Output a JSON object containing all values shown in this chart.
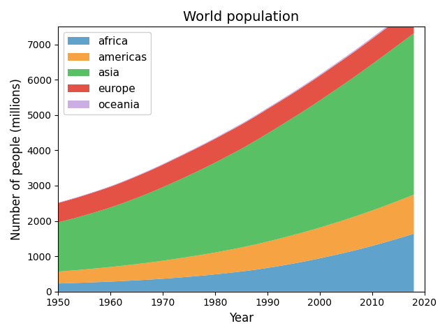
{
  "title": "World population",
  "xlabel": "Year",
  "ylabel": "Number of people (millions)",
  "years": [
    1950,
    1951,
    1952,
    1953,
    1954,
    1955,
    1956,
    1957,
    1958,
    1959,
    1960,
    1961,
    1962,
    1963,
    1964,
    1965,
    1966,
    1967,
    1968,
    1969,
    1970,
    1971,
    1972,
    1973,
    1974,
    1975,
    1976,
    1977,
    1978,
    1979,
    1980,
    1981,
    1982,
    1983,
    1984,
    1985,
    1986,
    1987,
    1988,
    1989,
    1990,
    1991,
    1992,
    1993,
    1994,
    1995,
    1996,
    1997,
    1998,
    1999,
    2000,
    2001,
    2002,
    2003,
    2004,
    2005,
    2006,
    2007,
    2008,
    2009,
    2010,
    2011,
    2012,
    2013,
    2014,
    2015,
    2016,
    2017,
    2018
  ],
  "africa": [
    228,
    232,
    237,
    242,
    247,
    252,
    258,
    263,
    269,
    275,
    281,
    288,
    295,
    302,
    310,
    318,
    326,
    335,
    344,
    353,
    363,
    374,
    385,
    396,
    408,
    420,
    432,
    445,
    458,
    472,
    487,
    502,
    518,
    534,
    550,
    568,
    586,
    605,
    625,
    647,
    670,
    693,
    717,
    742,
    768,
    795,
    822,
    850,
    879,
    909,
    940,
    972,
    1005,
    1038,
    1071,
    1106,
    1141,
    1177,
    1215,
    1253,
    1293,
    1333,
    1374,
    1416,
    1459,
    1502,
    1546,
    1591,
    1637
  ],
  "americas": [
    338,
    345,
    352,
    359,
    366,
    374,
    382,
    390,
    398,
    406,
    415,
    423,
    432,
    441,
    451,
    460,
    470,
    480,
    490,
    500,
    511,
    521,
    532,
    542,
    553,
    564,
    575,
    586,
    597,
    609,
    620,
    632,
    644,
    656,
    668,
    680,
    693,
    706,
    719,
    732,
    745,
    757,
    770,
    783,
    795,
    808,
    820,
    833,
    845,
    858,
    871,
    884,
    897,
    910,
    923,
    936,
    949,
    962,
    976,
    989,
    1002,
    1015,
    1028,
    1041,
    1054,
    1068,
    1081,
    1094,
    1107
  ],
  "asia": [
    1395,
    1420,
    1447,
    1474,
    1502,
    1531,
    1560,
    1591,
    1622,
    1654,
    1687,
    1722,
    1758,
    1796,
    1834,
    1874,
    1913,
    1953,
    1995,
    2038,
    2081,
    2126,
    2171,
    2217,
    2262,
    2308,
    2354,
    2401,
    2449,
    2497,
    2545,
    2595,
    2645,
    2694,
    2744,
    2794,
    2846,
    2899,
    2953,
    3007,
    3061,
    3114,
    3168,
    3222,
    3275,
    3329,
    3383,
    3437,
    3491,
    3545,
    3600,
    3655,
    3710,
    3764,
    3818,
    3872,
    3926,
    3980,
    4035,
    4090,
    4145,
    4200,
    4254,
    4308,
    4362,
    4416,
    4468,
    4520,
    4572
  ],
  "europe": [
    548,
    552,
    556,
    560,
    564,
    568,
    572,
    576,
    580,
    584,
    588,
    593,
    598,
    603,
    608,
    613,
    618,
    623,
    628,
    633,
    638,
    643,
    648,
    652,
    656,
    660,
    663,
    666,
    669,
    672,
    675,
    677,
    679,
    681,
    683,
    685,
    686,
    688,
    690,
    692,
    694,
    695,
    695,
    695,
    695,
    695,
    696,
    697,
    698,
    699,
    700,
    702,
    703,
    705,
    707,
    708,
    710,
    712,
    714,
    716,
    718,
    720,
    722,
    724,
    726,
    728,
    731,
    733,
    736
  ],
  "oceania": [
    13,
    13,
    13,
    14,
    14,
    14,
    15,
    15,
    15,
    16,
    16,
    16,
    17,
    17,
    17,
    18,
    18,
    19,
    19,
    19,
    20,
    20,
    21,
    21,
    21,
    22,
    22,
    23,
    23,
    23,
    24,
    24,
    25,
    25,
    26,
    26,
    26,
    27,
    27,
    28,
    28,
    29,
    29,
    30,
    30,
    30,
    31,
    31,
    32,
    32,
    33,
    33,
    34,
    34,
    35,
    35,
    36,
    36,
    37,
    37,
    38,
    38,
    39,
    39,
    40,
    40,
    41,
    41,
    42
  ],
  "colors": {
    "africa": "#4393c3",
    "americas": "#f59322",
    "asia": "#3cb54a",
    "europe": "#e03426",
    "oceania": "#c1a0e0"
  },
  "ylim": [
    0,
    7500
  ],
  "xlim": [
    1950,
    2020
  ],
  "yticks": [
    0,
    1000,
    2000,
    3000,
    4000,
    5000,
    6000,
    7000
  ],
  "xticks": [
    1950,
    1960,
    1970,
    1980,
    1990,
    2000,
    2010,
    2020
  ]
}
